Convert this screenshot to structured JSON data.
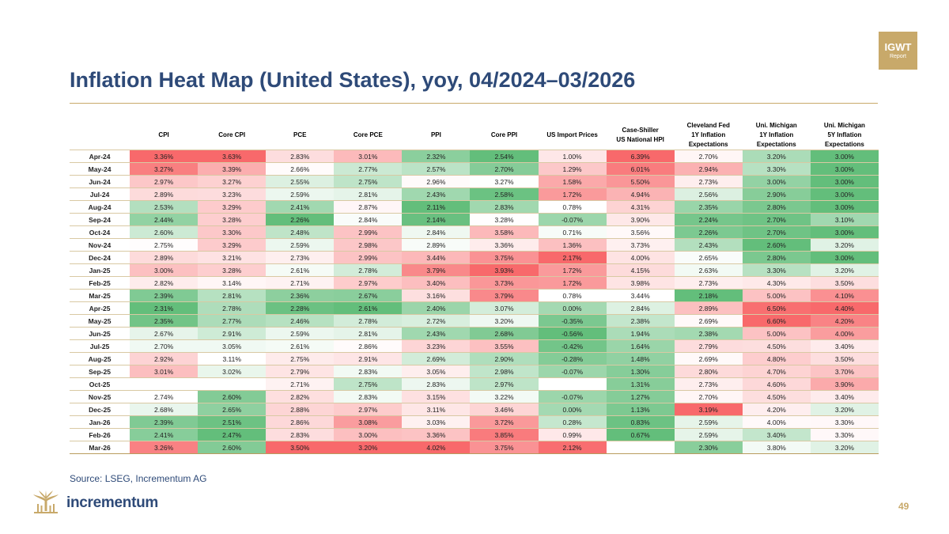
{
  "badge": {
    "top": "IGWT",
    "bottom": "Report"
  },
  "title": "Inflation Heat Map (United States), yoy, 04/2024–03/2026",
  "source": "Source: LSEG, Incrementum AG",
  "logo_text": "incrementum",
  "page_number": "49",
  "chart_data": {
    "type": "heatmap",
    "columns": [
      "CPI",
      "Core CPI",
      "PCE",
      "Core PCE",
      "PPI",
      "Core PPI",
      "US Import Prices",
      "Case-Shiller\nUS National HPI",
      "Cleveland Fed\n1Y Inflation\nExpectations",
      "Uni. Michigan\n1Y Inflation\nExpectations",
      "Uni. Michigan\n5Y Inflation\nExpectations"
    ],
    "rows": [
      "Apr-24",
      "May-24",
      "Jun-24",
      "Jul-24",
      "Aug-24",
      "Sep-24",
      "Oct-24",
      "Nov-24",
      "Dec-24",
      "Jan-25",
      "Feb-25",
      "Mar-25",
      "Apr-25",
      "May-25",
      "Jun-25",
      "Jul-25",
      "Aug-25",
      "Sep-25",
      "Oct-25",
      "Nov-25",
      "Dec-25",
      "Jan-26",
      "Feb-26",
      "Mar-26"
    ],
    "values": [
      [
        "3.36%",
        "3.63%",
        "2.83%",
        "3.01%",
        "2.32%",
        "2.54%",
        "1.00%",
        "6.39%",
        "2.70%",
        "3.20%",
        "3.00%"
      ],
      [
        "3.27%",
        "3.39%",
        "2.66%",
        "2.77%",
        "2.57%",
        "2.70%",
        "1.29%",
        "6.01%",
        "2.94%",
        "3.30%",
        "3.00%"
      ],
      [
        "2.97%",
        "3.27%",
        "2.55%",
        "2.75%",
        "2.96%",
        "3.27%",
        "1.58%",
        "5.50%",
        "2.73%",
        "3.00%",
        "3.00%"
      ],
      [
        "2.89%",
        "3.23%",
        "2.59%",
        "2.81%",
        "2.43%",
        "2.58%",
        "1.72%",
        "4.94%",
        "2.56%",
        "2.90%",
        "3.00%"
      ],
      [
        "2.53%",
        "3.29%",
        "2.41%",
        "2.87%",
        "2.11%",
        "2.83%",
        "0.78%",
        "4.31%",
        "2.35%",
        "2.80%",
        "3.00%"
      ],
      [
        "2.44%",
        "3.28%",
        "2.26%",
        "2.84%",
        "2.14%",
        "3.28%",
        "-0.07%",
        "3.90%",
        "2.24%",
        "2.70%",
        "3.10%"
      ],
      [
        "2.60%",
        "3.30%",
        "2.48%",
        "2.99%",
        "2.84%",
        "3.58%",
        "0.71%",
        "3.56%",
        "2.26%",
        "2.70%",
        "3.00%"
      ],
      [
        "2.75%",
        "3.29%",
        "2.59%",
        "2.98%",
        "2.89%",
        "3.36%",
        "1.36%",
        "3.73%",
        "2.43%",
        "2.60%",
        "3.20%"
      ],
      [
        "2.89%",
        "3.21%",
        "2.73%",
        "2.99%",
        "3.44%",
        "3.75%",
        "2.17%",
        "4.00%",
        "2.65%",
        "2.80%",
        "3.00%"
      ],
      [
        "3.00%",
        "3.28%",
        "2.61%",
        "2.78%",
        "3.79%",
        "3.93%",
        "1.72%",
        "4.15%",
        "2.63%",
        "3.30%",
        "3.20%"
      ],
      [
        "2.82%",
        "3.14%",
        "2.71%",
        "2.97%",
        "3.40%",
        "3.73%",
        "1.72%",
        "3.98%",
        "2.73%",
        "4.30%",
        "3.50%"
      ],
      [
        "2.39%",
        "2.81%",
        "2.36%",
        "2.67%",
        "3.16%",
        "3.79%",
        "0.78%",
        "3.44%",
        "2.18%",
        "5.00%",
        "4.10%"
      ],
      [
        "2.31%",
        "2.78%",
        "2.28%",
        "2.61%",
        "2.40%",
        "3.07%",
        "0.00%",
        "2.84%",
        "2.89%",
        "6.50%",
        "4.40%"
      ],
      [
        "2.35%",
        "2.77%",
        "2.46%",
        "2.78%",
        "2.72%",
        "3.20%",
        "-0.35%",
        "2.38%",
        "2.69%",
        "6.60%",
        "4.20%"
      ],
      [
        "2.67%",
        "2.91%",
        "2.59%",
        "2.81%",
        "2.43%",
        "2.68%",
        "-0.56%",
        "1.94%",
        "2.38%",
        "5.00%",
        "4.00%"
      ],
      [
        "2.70%",
        "3.05%",
        "2.61%",
        "2.86%",
        "3.23%",
        "3.55%",
        "-0.42%",
        "1.64%",
        "2.79%",
        "4.50%",
        "3.40%"
      ],
      [
        "2.92%",
        "3.11%",
        "2.75%",
        "2.91%",
        "2.69%",
        "2.90%",
        "-0.28%",
        "1.48%",
        "2.69%",
        "4.80%",
        "3.50%"
      ],
      [
        "3.01%",
        "3.02%",
        "2.79%",
        "2.83%",
        "3.05%",
        "2.98%",
        "-0.07%",
        "1.30%",
        "2.80%",
        "4.70%",
        "3.70%"
      ],
      [
        "",
        "",
        "2.71%",
        "2.75%",
        "2.83%",
        "2.97%",
        "",
        "1.31%",
        "2.73%",
        "4.60%",
        "3.90%"
      ],
      [
        "2.74%",
        "2.60%",
        "2.82%",
        "2.83%",
        "3.15%",
        "3.22%",
        "-0.07%",
        "1.27%",
        "2.70%",
        "4.50%",
        "3.40%"
      ],
      [
        "2.68%",
        "2.65%",
        "2.88%",
        "2.97%",
        "3.11%",
        "3.46%",
        "0.00%",
        "1.13%",
        "3.19%",
        "4.20%",
        "3.20%"
      ],
      [
        "2.39%",
        "2.51%",
        "2.86%",
        "3.08%",
        "3.03%",
        "3.72%",
        "0.28%",
        "0.83%",
        "2.59%",
        "4.00%",
        "3.30%"
      ],
      [
        "2.41%",
        "2.47%",
        "2.83%",
        "3.00%",
        "3.36%",
        "3.85%",
        "0.99%",
        "0.67%",
        "2.59%",
        "3.40%",
        "3.30%"
      ],
      [
        "3.26%",
        "2.60%",
        "3.50%",
        "3.20%",
        "4.02%",
        "3.75%",
        "2.12%",
        "",
        "2.30%",
        "3.80%",
        "3.20%"
      ]
    ],
    "color_scale": {
      "low": "#63be7b",
      "mid": "#ffffff",
      "high": "#f8696b",
      "scope": "per-column"
    }
  }
}
